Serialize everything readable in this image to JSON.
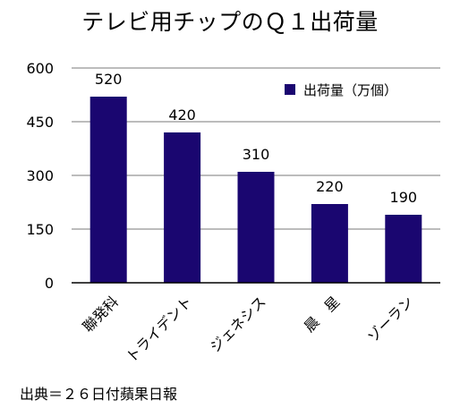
{
  "chart_data": {
    "type": "bar",
    "title": "テレビ用チップのＱ１出荷量",
    "categories": [
      "聯発科",
      "トライデント",
      "ジェネシス",
      "晨　星",
      "ゾーラン"
    ],
    "series": [
      {
        "name": "出荷量（万個）",
        "values": [
          520,
          420,
          310,
          220,
          190
        ]
      }
    ],
    "data_labels": [
      "520",
      "420",
      "310",
      "220",
      "190"
    ],
    "y_ticks": [
      "0",
      "150",
      "300",
      "450",
      "600"
    ],
    "ylim": [
      0,
      600
    ],
    "xlabel": "",
    "ylabel": "",
    "grid": true,
    "legend_position": "top-right",
    "colors": {
      "bar": "#1a0670",
      "grid": "#a6a6a6",
      "axis": "#000000"
    },
    "source": "出典＝２６日付蘋果日報"
  }
}
